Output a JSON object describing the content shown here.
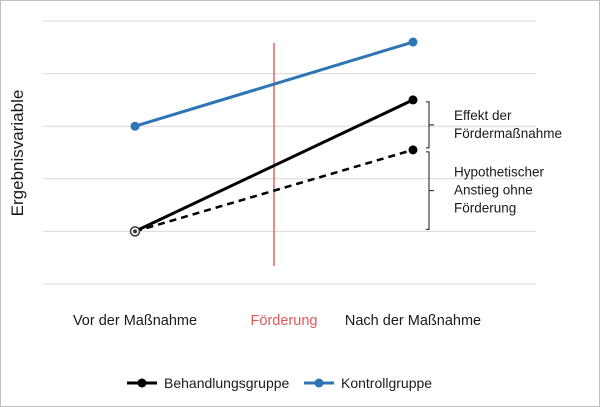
{
  "chart_data": {
    "type": "line",
    "title": "",
    "ylabel": "Ergebnisvariable",
    "xlabel": "",
    "categories": [
      "Vor der Maßnahme",
      "Nach der Maßnahme"
    ],
    "intervention": {
      "label": "Förderung",
      "position": 0.5,
      "color": "#e05a5a"
    },
    "ylim": [
      0,
      5
    ],
    "grid": true,
    "series": [
      {
        "name": "Behandlungsgruppe",
        "color": "#000000",
        "style": "solid",
        "values": [
          1.0,
          3.5
        ]
      },
      {
        "name": "Kontrollgruppe",
        "color": "#2e75b6",
        "style": "solid",
        "values": [
          3.0,
          4.6
        ]
      },
      {
        "name": "",
        "color": "#000000",
        "style": "dashed",
        "values": [
          1.0,
          2.55
        ]
      }
    ],
    "annotations": [
      {
        "text_lines": [
          "Effekt der",
          "Fördermaßnahme"
        ],
        "from": 2.55,
        "to": 3.5
      },
      {
        "text_lines": [
          "Hypothetischer",
          "Anstieg ohne",
          "Förderung"
        ],
        "from": 1.0,
        "to": 2.55
      }
    ],
    "legend": {
      "placement": "bottom",
      "items": [
        "Behandlungsgruppe",
        "Kontrollgruppe"
      ]
    }
  }
}
